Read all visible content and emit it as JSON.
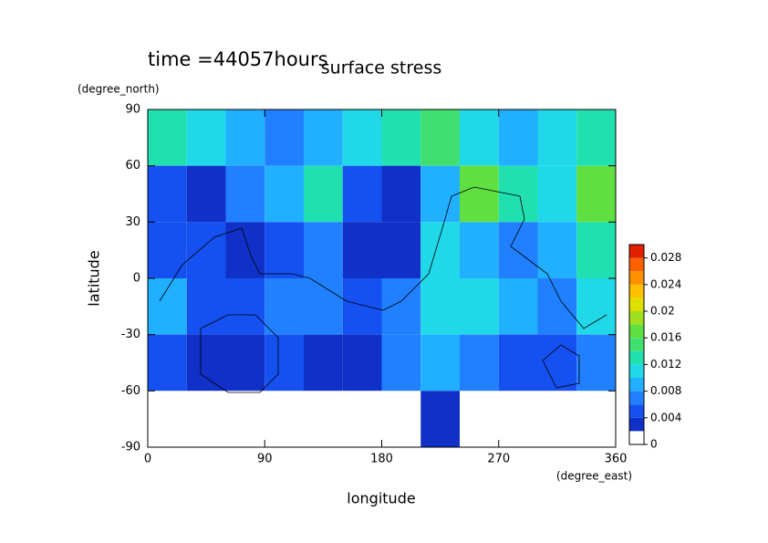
{
  "chart_data": {
    "type": "contour",
    "title": "surface stress",
    "subtitle": "time =44057hours",
    "x_label": "longitude",
    "x_unit": "(degree_east)",
    "y_label": "latitude",
    "y_unit": "(degree_north)",
    "x": [
      0,
      30,
      60,
      90,
      120,
      150,
      180,
      210,
      240,
      270,
      300,
      330,
      360
    ],
    "y": [
      90,
      60,
      30,
      0,
      -30,
      -60,
      -90
    ],
    "values": [
      [
        0.012,
        0.01,
        0.008,
        0.006,
        0.008,
        0.01,
        0.012,
        0.014,
        0.01,
        0.008,
        0.01,
        0.012
      ],
      [
        0.004,
        0.002,
        0.006,
        0.008,
        0.012,
        0.004,
        0.002,
        0.008,
        0.016,
        0.012,
        0.01,
        0.016
      ],
      [
        0.004,
        0.004,
        0.002,
        0.004,
        0.006,
        0.002,
        0.002,
        0.01,
        0.008,
        0.006,
        0.008,
        0.012
      ],
      [
        0.008,
        0.004,
        0.004,
        0.006,
        0.006,
        0.004,
        0.006,
        0.01,
        0.01,
        0.008,
        0.006,
        0.01
      ],
      [
        0.004,
        0.002,
        0.002,
        0.004,
        0.002,
        0.002,
        0.006,
        0.008,
        0.006,
        0.004,
        0.004,
        0.006
      ],
      [
        0,
        0,
        0,
        0,
        0,
        0,
        0,
        0.002,
        0,
        0,
        0,
        0
      ]
    ],
    "xlim": [
      0,
      360
    ],
    "xticks": [
      0,
      90,
      180,
      270,
      360
    ],
    "ylim": [
      -90,
      90
    ],
    "yticks": [
      -90,
      -60,
      -30,
      0,
      30,
      60,
      90
    ],
    "clim": [
      0,
      0.03
    ],
    "level_step": 0.002,
    "cticks": [
      0,
      0.004,
      0.008,
      0.012,
      0.016,
      0.02,
      0.024,
      0.028
    ],
    "colors": [
      "#ffffff",
      "#1030c8",
      "#1550f0",
      "#2080ff",
      "#20b0ff",
      "#20d8e8",
      "#20e0b0",
      "#40e070",
      "#60e040",
      "#a0e020",
      "#e0e000",
      "#ffc000",
      "#ff9000",
      "#ff6000",
      "#e02000"
    ]
  }
}
